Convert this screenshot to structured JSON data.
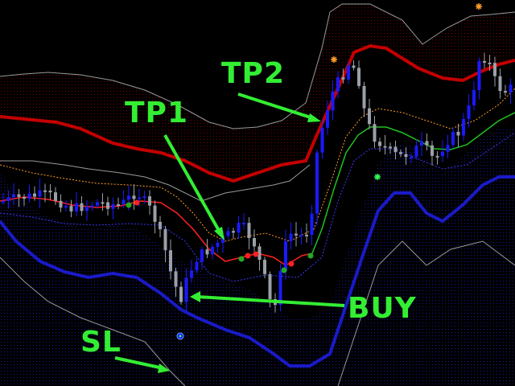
{
  "chart_data": {
    "type": "candlestick",
    "colors": {
      "background": "#000000",
      "bull_candle": "#1a1aff",
      "bear_candle": "#9aa0a8",
      "upper_band": "#c40000",
      "upper_fill": "#6b0000",
      "lower_band": "#1a1ac8",
      "lower_fill": "#10108a",
      "outer_envelope": "#9a9a9a",
      "middle_line_down": "#ff2020",
      "middle_line_up": "#20c020",
      "dotted_upper": "#ff9d2a",
      "dotted_lower": "#3a3aff",
      "annotation": "#33ee33",
      "marker_star": "#ff9d2a",
      "marker_star_green": "#33ff55"
    },
    "annotations": [
      {
        "id": "tp1",
        "text": "TP1"
      },
      {
        "id": "tp2",
        "text": "TP2"
      },
      {
        "id": "buy",
        "text": "BUY"
      },
      {
        "id": "sl",
        "text": "SL"
      }
    ]
  }
}
